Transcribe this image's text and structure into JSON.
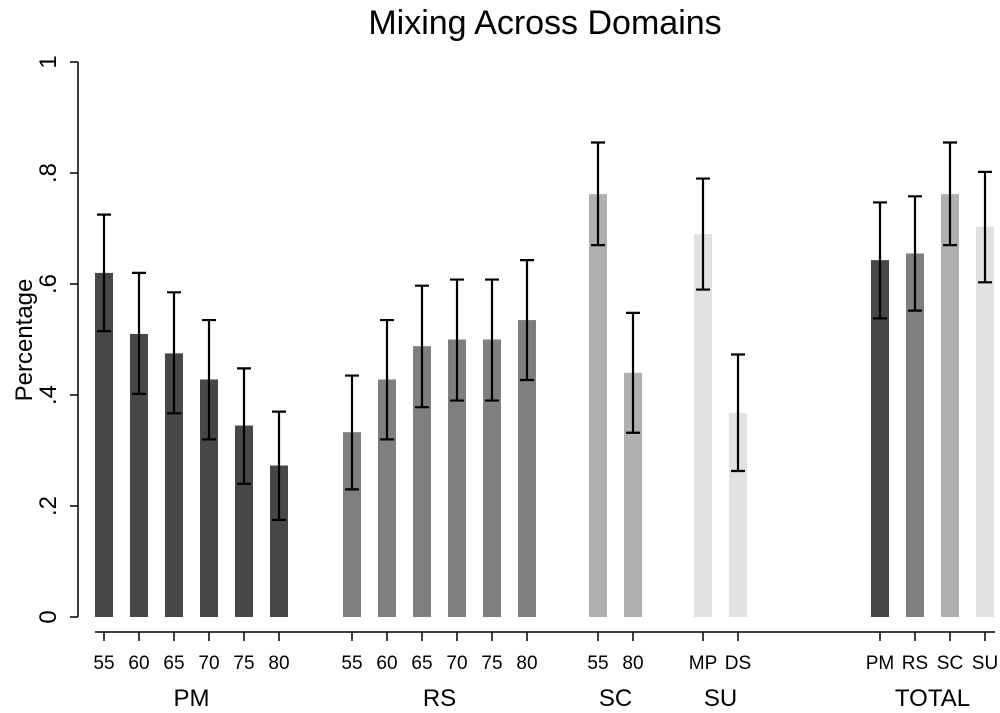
{
  "chart_data": {
    "type": "bar",
    "title": "Mixing Across Domains",
    "ylabel": "Percentage",
    "xlabel": "",
    "ylim": [
      0,
      1
    ],
    "yticks": [
      {
        "value": 0,
        "label": "0"
      },
      {
        "value": 0.2,
        "label": ".2"
      },
      {
        "value": 0.4,
        "label": ".4"
      },
      {
        "value": 0.6,
        "label": ".6"
      },
      {
        "value": 0.8,
        "label": ".8"
      },
      {
        "value": 1,
        "label": "1"
      }
    ],
    "grid": false,
    "colors": {
      "PM": "#474747",
      "RS": "#7f7f7f",
      "SC": "#b0b0b0",
      "SU": "#e2e2e2"
    },
    "groups": [
      {
        "label": "PM",
        "bars": [
          {
            "label": "55",
            "value": 0.62,
            "ci": [
              0.515,
              0.725
            ],
            "color_key": "PM"
          },
          {
            "label": "60",
            "value": 0.51,
            "ci": [
              0.402,
              0.62
            ],
            "color_key": "PM"
          },
          {
            "label": "65",
            "value": 0.475,
            "ci": [
              0.367,
              0.585
            ],
            "color_key": "PM"
          },
          {
            "label": "70",
            "value": 0.428,
            "ci": [
              0.32,
              0.535
            ],
            "color_key": "PM"
          },
          {
            "label": "75",
            "value": 0.345,
            "ci": [
              0.24,
              0.448
            ],
            "color_key": "PM"
          },
          {
            "label": "80",
            "value": 0.273,
            "ci": [
              0.175,
              0.37
            ],
            "color_key": "PM"
          }
        ]
      },
      {
        "label": "RS",
        "bars": [
          {
            "label": "55",
            "value": 0.333,
            "ci": [
              0.23,
              0.435
            ],
            "color_key": "RS"
          },
          {
            "label": "60",
            "value": 0.428,
            "ci": [
              0.32,
              0.535
            ],
            "color_key": "RS"
          },
          {
            "label": "65",
            "value": 0.488,
            "ci": [
              0.378,
              0.597
            ],
            "color_key": "RS"
          },
          {
            "label": "70",
            "value": 0.5,
            "ci": [
              0.39,
              0.608
            ],
            "color_key": "RS"
          },
          {
            "label": "75",
            "value": 0.5,
            "ci": [
              0.39,
              0.608
            ],
            "color_key": "RS"
          },
          {
            "label": "80",
            "value": 0.535,
            "ci": [
              0.427,
              0.643
            ],
            "color_key": "RS"
          }
        ]
      },
      {
        "label": "SC",
        "bars": [
          {
            "label": "55",
            "value": 0.762,
            "ci": [
              0.67,
              0.855
            ],
            "color_key": "SC"
          },
          {
            "label": "80",
            "value": 0.44,
            "ci": [
              0.332,
              0.548
            ],
            "color_key": "SC"
          }
        ]
      },
      {
        "label": "SU",
        "bars": [
          {
            "label": "MP",
            "value": 0.69,
            "ci": [
              0.59,
              0.79
            ],
            "color_key": "SU"
          },
          {
            "label": "DS",
            "value": 0.368,
            "ci": [
              0.263,
              0.473
            ],
            "color_key": "SU"
          }
        ]
      },
      {
        "label": "TOTAL",
        "bars": [
          {
            "label": "PM",
            "value": 0.643,
            "ci": [
              0.538,
              0.747
            ],
            "color_key": "PM"
          },
          {
            "label": "RS",
            "value": 0.655,
            "ci": [
              0.552,
              0.758
            ],
            "color_key": "RS"
          },
          {
            "label": "SC",
            "value": 0.762,
            "ci": [
              0.67,
              0.855
            ],
            "color_key": "SC"
          },
          {
            "label": "SU",
            "value": 0.703,
            "ci": [
              0.603,
              0.802
            ],
            "color_key": "SU"
          }
        ]
      }
    ]
  }
}
